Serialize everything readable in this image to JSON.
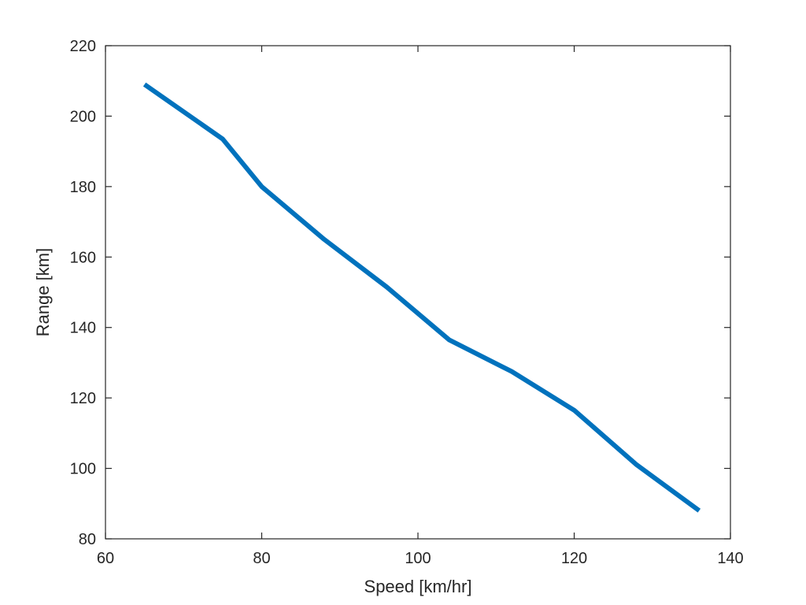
{
  "chart_data": {
    "type": "line",
    "title": "",
    "xlabel": "Speed [km/hr]",
    "ylabel": "Range [km]",
    "xlim": [
      60,
      140
    ],
    "ylim": [
      80,
      220
    ],
    "xticks": [
      60,
      80,
      100,
      120,
      140
    ],
    "yticks": [
      80,
      100,
      120,
      140,
      160,
      180,
      200,
      220
    ],
    "grid": false,
    "legend": "none",
    "series": [
      {
        "color": "#0072BD",
        "x": [
          65,
          75,
          80,
          88,
          96,
          104,
          112,
          120,
          128,
          136
        ],
        "y": [
          209,
          193.5,
          180,
          165,
          151.5,
          136.5,
          127.5,
          116.5,
          101,
          88
        ]
      }
    ]
  }
}
